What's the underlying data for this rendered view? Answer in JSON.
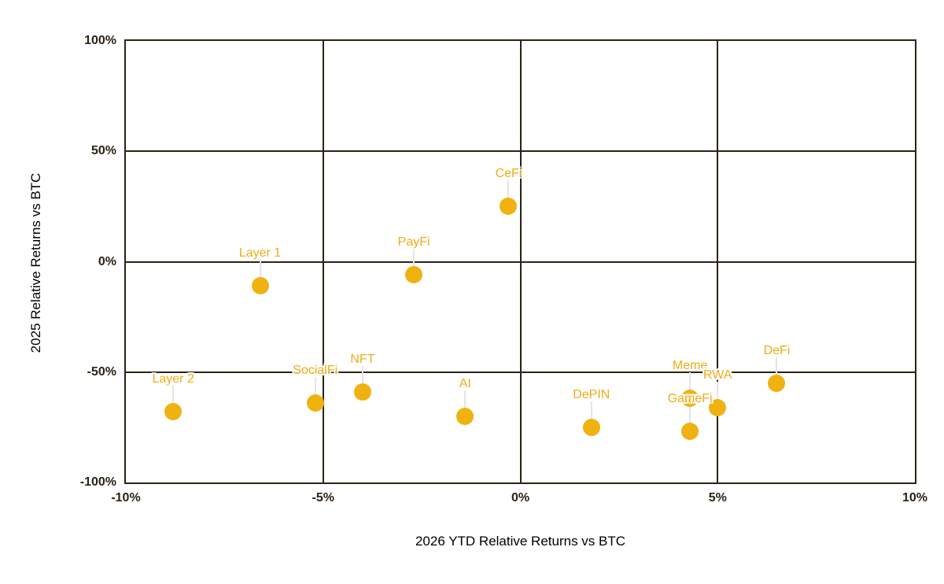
{
  "chart_data": {
    "type": "scatter",
    "title": "",
    "xlabel": "2026 YTD Relative Returns vs BTC",
    "ylabel": "2025 Relative Returns vs BTC",
    "xlim": [
      -10,
      10
    ],
    "ylim": [
      -100,
      100
    ],
    "grid": true,
    "legend": "none",
    "x_ticks": [
      {
        "value": -10,
        "label": "-10%"
      },
      {
        "value": -5,
        "label": "-5%"
      },
      {
        "value": 0,
        "label": "0%"
      },
      {
        "value": 5,
        "label": "5%"
      },
      {
        "value": 10,
        "label": "10%"
      }
    ],
    "y_ticks": [
      {
        "value": 100,
        "label": "100%"
      },
      {
        "value": 50,
        "label": "50%"
      },
      {
        "value": 0,
        "label": "0%"
      },
      {
        "value": -50,
        "label": "-50%"
      },
      {
        "value": -100,
        "label": "-100%"
      }
    ],
    "points": [
      {
        "label": "Layer 2",
        "x": -8.8,
        "y": -68
      },
      {
        "label": "Layer 1",
        "x": -6.6,
        "y": -11
      },
      {
        "label": "SocialFi",
        "x": -5.2,
        "y": -64
      },
      {
        "label": "NFT",
        "x": -4.0,
        "y": -59
      },
      {
        "label": "PayFi",
        "x": -2.7,
        "y": -6
      },
      {
        "label": "AI",
        "x": -1.4,
        "y": -70
      },
      {
        "label": "CeFi",
        "x": -0.3,
        "y": 25
      },
      {
        "label": "DePIN",
        "x": 1.8,
        "y": -75
      },
      {
        "label": "Meme",
        "x": 4.3,
        "y": -62
      },
      {
        "label": "GameFi",
        "x": 4.3,
        "y": -77
      },
      {
        "label": "RWA",
        "x": 5.0,
        "y": -66
      },
      {
        "label": "DeFi",
        "x": 6.5,
        "y": -55
      }
    ]
  },
  "colors": {
    "background": "#FFFFFF",
    "grid_and_axis": "#2B2314",
    "tick_text": "#2B2314",
    "axis_title_text": "#000000",
    "point_fill": "#EFB211",
    "point_label_text": "#EFAC14",
    "leader_line": "#E4E4E4"
  }
}
